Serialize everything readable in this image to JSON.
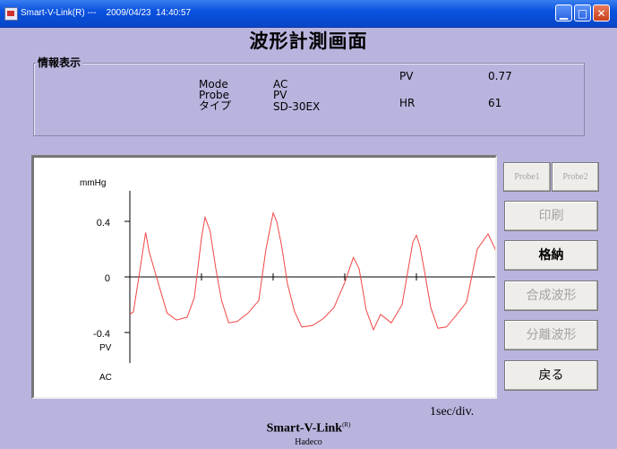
{
  "window": {
    "title": "Smart-V-Link(R) ---    2009/04/23  14:40:57",
    "minimize": "▁",
    "maximize": "□",
    "close": "✕"
  },
  "page_title": "波形計測画面",
  "info": {
    "section_label": "情報表示",
    "mode_label": "Mode",
    "mode_value": "AC",
    "probe_label": "Probe",
    "probe_value": "PV",
    "type_label": "タイプ",
    "type_value": "SD-30EX",
    "pv_label": "PV",
    "pv_value": "0.77",
    "hr_label": "HR",
    "hr_value": "61"
  },
  "chart_data": {
    "type": "line",
    "ylabel": "mmHg",
    "yticks": [
      "0.4",
      "0",
      "-0.4"
    ],
    "ylim": [
      -0.62,
      0.62
    ],
    "trace_labels": [
      "PV",
      "AC"
    ],
    "x_scale": "1sec/div.",
    "grid": false,
    "color": "#f04646",
    "series": [
      {
        "x": [
          0,
          0.05,
          0.15,
          0.22,
          0.27,
          0.4,
          0.52,
          0.65,
          0.8,
          0.9,
          1.0,
          1.05,
          1.12,
          1.2,
          1.28,
          1.38,
          1.5,
          1.65,
          1.8,
          1.9,
          2.0,
          2.05,
          2.12,
          2.2,
          2.3,
          2.4,
          2.55,
          2.7,
          2.85,
          3.0,
          3.12,
          3.2,
          3.3,
          3.4,
          3.5,
          3.65,
          3.8,
          3.95,
          4.0,
          4.05,
          4.12,
          4.2,
          4.3,
          4.42,
          4.55,
          4.7,
          4.85,
          5.0,
          5.1,
          5.2,
          5.35,
          5.5,
          5.65,
          5.8,
          5.9,
          6.0,
          6.05
        ],
        "y": [
          -0.27,
          -0.25,
          0.08,
          0.32,
          0.18,
          -0.05,
          -0.26,
          -0.31,
          -0.29,
          -0.15,
          0.28,
          0.43,
          0.33,
          0.06,
          -0.17,
          -0.33,
          -0.32,
          -0.26,
          -0.17,
          0.2,
          0.46,
          0.4,
          0.22,
          -0.05,
          -0.25,
          -0.36,
          -0.35,
          -0.3,
          -0.22,
          -0.04,
          0.14,
          0.06,
          -0.24,
          -0.38,
          -0.27,
          -0.33,
          -0.2,
          0.25,
          0.3,
          0.22,
          0.02,
          -0.22,
          -0.37,
          -0.36,
          -0.28,
          -0.18,
          0.2,
          0.31,
          0.2,
          -0.08,
          -0.28,
          -0.37,
          -0.35,
          -0.28,
          -0.15,
          0.18,
          0.21
        ]
      }
    ]
  },
  "buttons": {
    "probe1": "Probe1",
    "probe2": "Probe2",
    "print": "印刷",
    "store": "格納",
    "composite": "合成波形",
    "separate": "分離波形",
    "back": "戻る"
  },
  "footer": {
    "brand": "Smart-V-Link",
    "brand_mark": "(R)",
    "maker": "Hadeco"
  }
}
